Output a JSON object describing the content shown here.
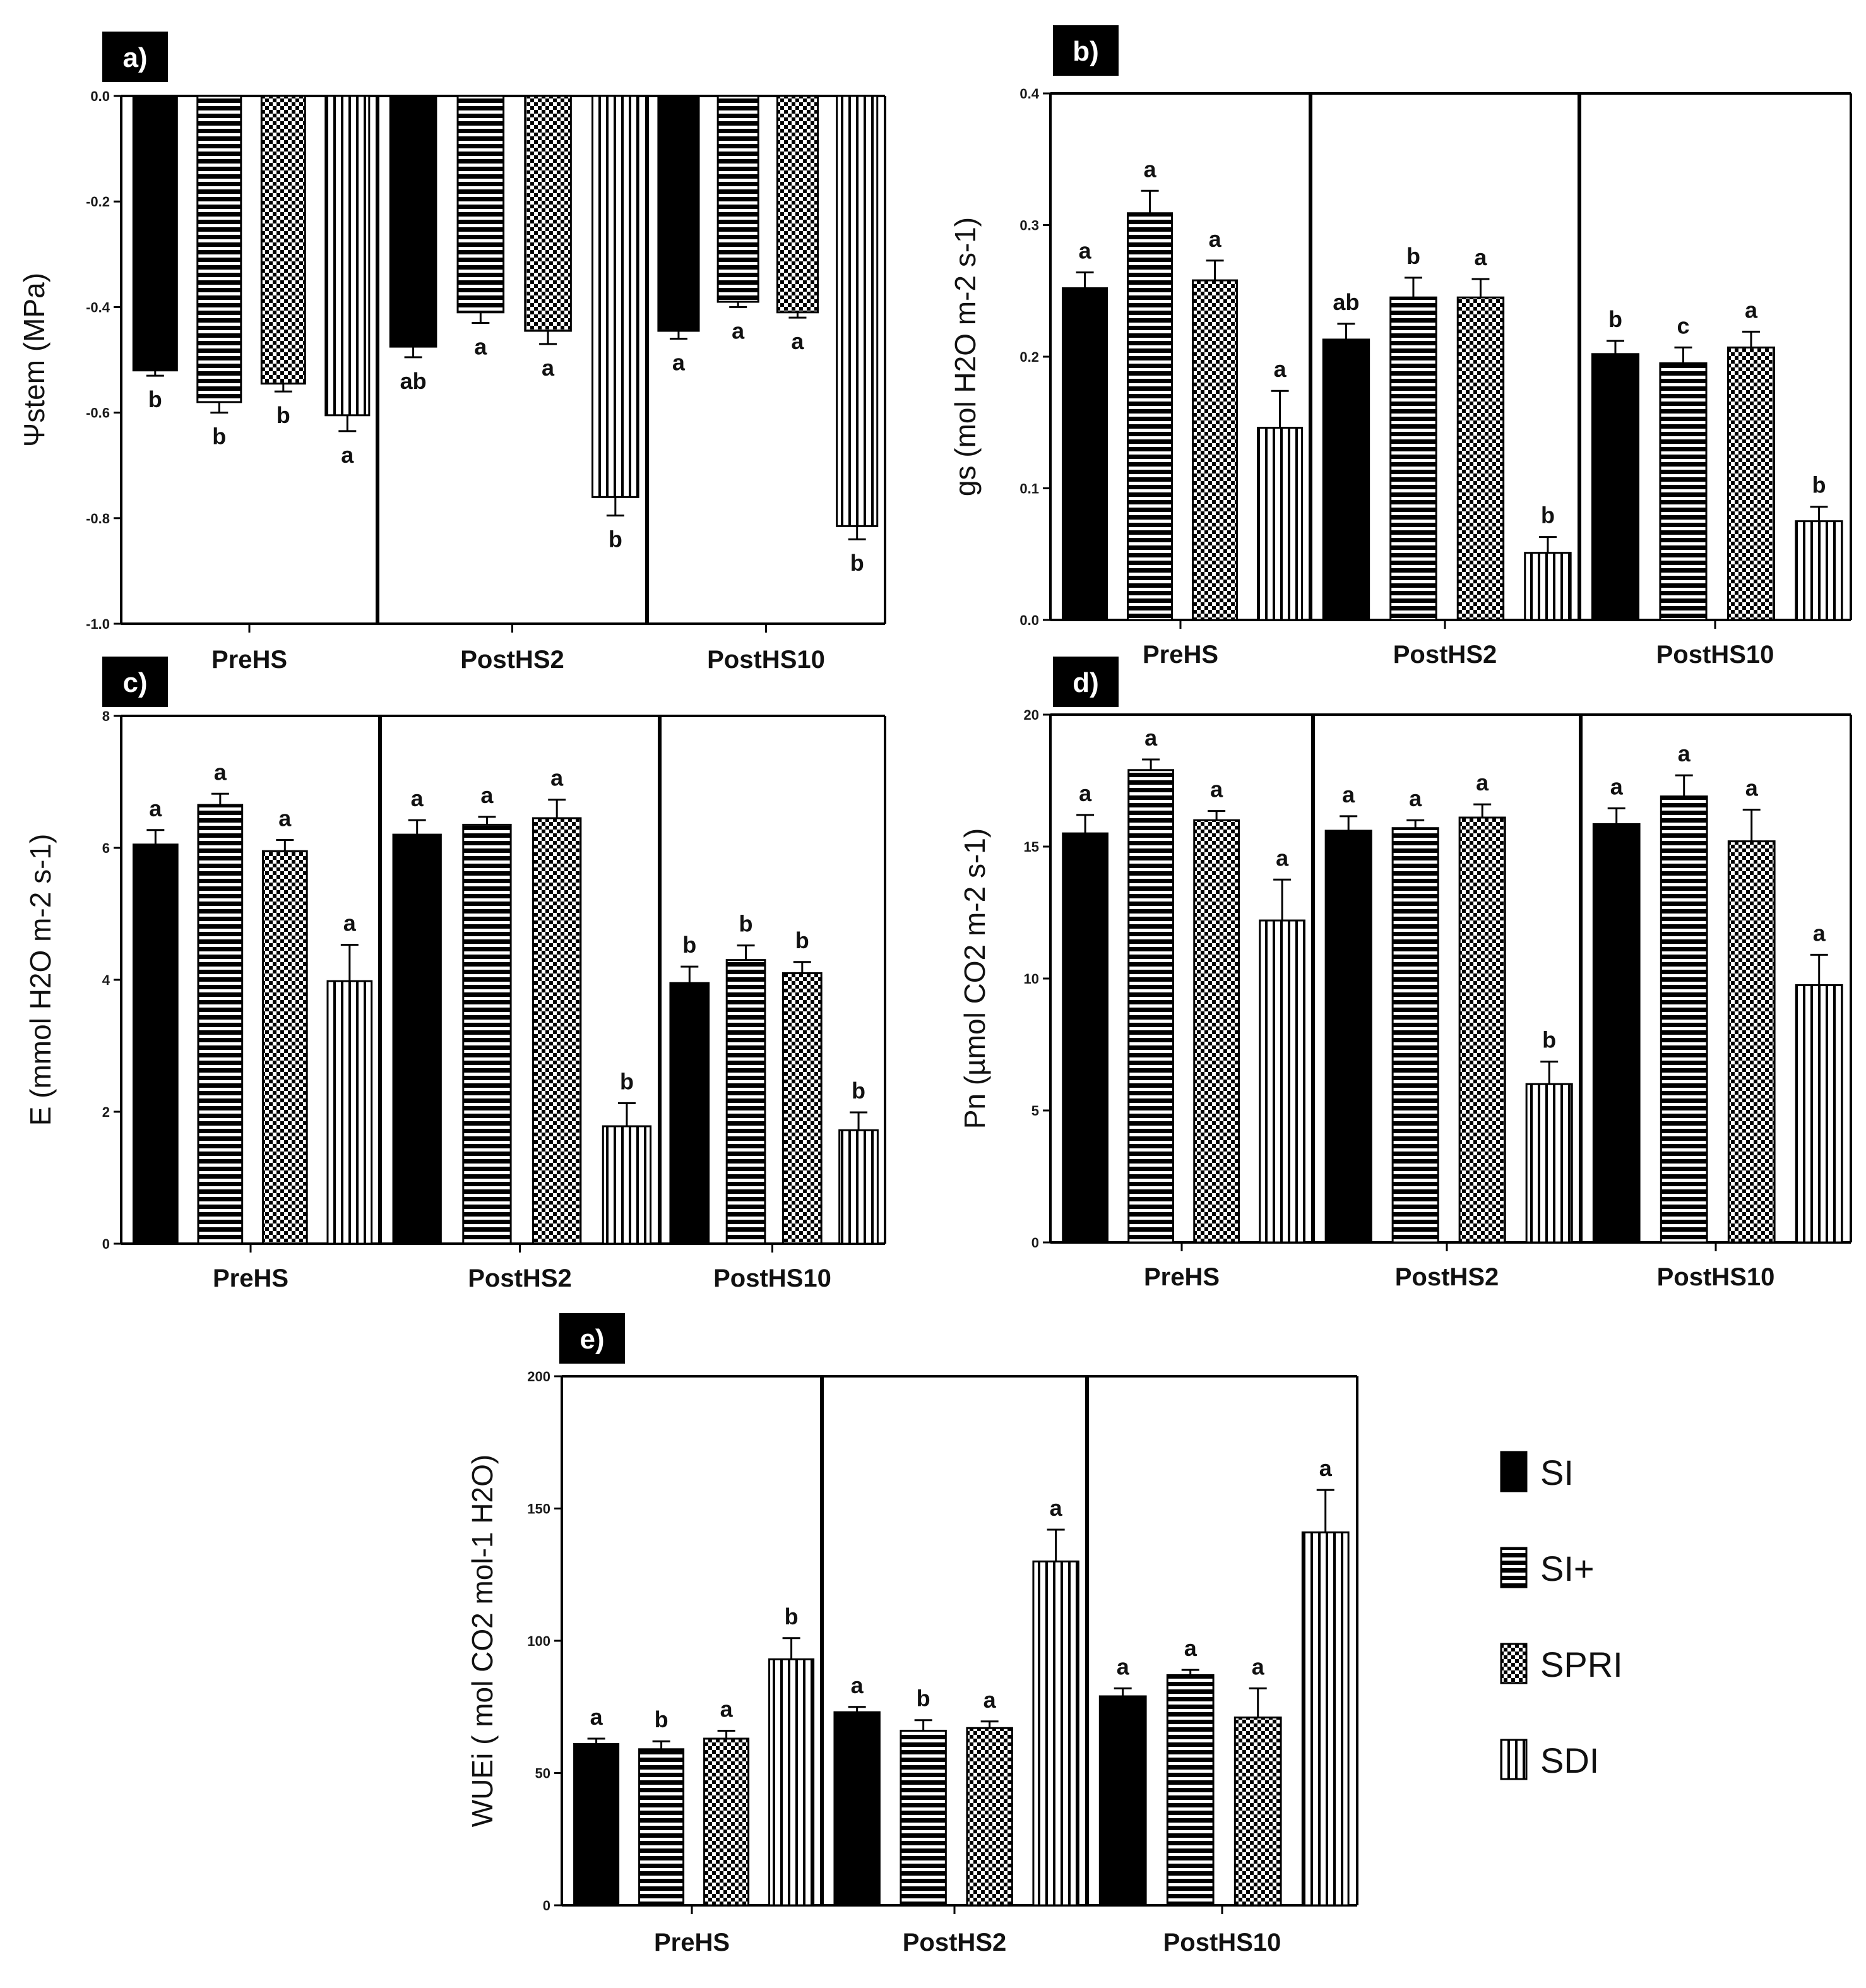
{
  "groups": [
    "PreHS",
    "PostHS2",
    "PostHS10"
  ],
  "treatments": [
    "SI",
    "SI+",
    "SPRI",
    "SDI"
  ],
  "legend": {
    "items": [
      {
        "label": "SI",
        "pattern": "solid"
      },
      {
        "label": "SI+",
        "pattern": "hlines"
      },
      {
        "label": "SPRI",
        "pattern": "checker"
      },
      {
        "label": "SDI",
        "pattern": "vlines"
      }
    ]
  },
  "chart_data": [
    {
      "type": "bar",
      "panel": "a)",
      "title": "",
      "ylabel": "Ψstem (MPa)",
      "ylim": [
        -1.0,
        0.0
      ],
      "yticks": [
        0.0,
        -0.2,
        -0.4,
        -0.6,
        -0.8,
        -1.0
      ],
      "tick_labels": [
        "0.0",
        "-0.2",
        "-0.4",
        "-0.6",
        "-0.8",
        "-1.0"
      ],
      "categories": [
        "PreHS",
        "PostHS2",
        "PostHS10"
      ],
      "series": [
        {
          "name": "SI",
          "values": [
            -0.52,
            -0.475,
            -0.445
          ],
          "errors": [
            0.01,
            0.02,
            0.015
          ],
          "letters": [
            "b",
            "ab",
            "a"
          ]
        },
        {
          "name": "SI+",
          "values": [
            -0.58,
            -0.41,
            -0.39
          ],
          "errors": [
            0.02,
            0.02,
            0.01
          ],
          "letters": [
            "b",
            "a",
            "a"
          ]
        },
        {
          "name": "SPRI",
          "values": [
            -0.545,
            -0.445,
            -0.41
          ],
          "errors": [
            0.015,
            0.025,
            0.01
          ],
          "letters": [
            "b",
            "a",
            "a"
          ]
        },
        {
          "name": "SDI",
          "values": [
            -0.605,
            -0.76,
            -0.815
          ],
          "errors": [
            0.03,
            0.035,
            0.025
          ],
          "letters": [
            "a",
            "b",
            "b"
          ]
        }
      ]
    },
    {
      "type": "bar",
      "panel": "b)",
      "title": "",
      "ylabel": "gs (mol H2O m-2 s-1)",
      "ylim": [
        0.0,
        0.4
      ],
      "yticks": [
        0.0,
        0.1,
        0.2,
        0.3,
        0.4
      ],
      "tick_labels": [
        "0.0",
        "0.1",
        "0.2",
        "0.3",
        "0.4"
      ],
      "categories": [
        "PreHS",
        "PostHS2",
        "PostHS10"
      ],
      "series": [
        {
          "name": "SI",
          "values": [
            0.252,
            0.213,
            0.202
          ],
          "errors": [
            0.012,
            0.012,
            0.01
          ],
          "letters": [
            "a",
            "ab",
            "b"
          ]
        },
        {
          "name": "SI+",
          "values": [
            0.309,
            0.245,
            0.195
          ],
          "errors": [
            0.017,
            0.015,
            0.012
          ],
          "letters": [
            "a",
            "b",
            "c"
          ]
        },
        {
          "name": "SPRI",
          "values": [
            0.258,
            0.245,
            0.207
          ],
          "errors": [
            0.015,
            0.014,
            0.012
          ],
          "letters": [
            "a",
            "a",
            "a"
          ]
        },
        {
          "name": "SDI",
          "values": [
            0.146,
            0.051,
            0.075
          ],
          "errors": [
            0.028,
            0.012,
            0.011
          ],
          "letters": [
            "a",
            "b",
            "b"
          ]
        }
      ]
    },
    {
      "type": "bar",
      "panel": "c)",
      "title": "",
      "ylabel": "E (mmol H2O m-2 s-1)",
      "ylim": [
        0,
        8
      ],
      "yticks": [
        0,
        2,
        4,
        6,
        8
      ],
      "tick_labels": [
        "0",
        "2",
        "4",
        "6",
        "8"
      ],
      "categories": [
        "PreHS",
        "PostHS2",
        "PostHS10"
      ],
      "series": [
        {
          "name": "SI",
          "values": [
            6.05,
            6.2,
            3.95
          ],
          "errors": [
            0.22,
            0.22,
            0.25
          ],
          "letters": [
            "a",
            "a",
            "b"
          ]
        },
        {
          "name": "SI+",
          "values": [
            6.65,
            6.35,
            4.3
          ],
          "errors": [
            0.17,
            0.12,
            0.22
          ],
          "letters": [
            "a",
            "a",
            "b"
          ]
        },
        {
          "name": "SPRI",
          "values": [
            5.95,
            6.45,
            4.1
          ],
          "errors": [
            0.17,
            0.28,
            0.17
          ],
          "letters": [
            "a",
            "a",
            "b"
          ]
        },
        {
          "name": "SDI",
          "values": [
            3.98,
            1.78,
            1.72
          ],
          "errors": [
            0.55,
            0.35,
            0.27
          ],
          "letters": [
            "a",
            "b",
            "b"
          ]
        }
      ]
    },
    {
      "type": "bar",
      "panel": "d)",
      "title": "",
      "ylabel": "Pn (µmol CO2 m-2 s-1)",
      "ylim": [
        0,
        20
      ],
      "yticks": [
        0,
        5,
        10,
        15,
        20
      ],
      "tick_labels": [
        "0",
        "5",
        "10",
        "15",
        "20"
      ],
      "categories": [
        "PreHS",
        "PostHS2",
        "PostHS10"
      ],
      "series": [
        {
          "name": "SI",
          "values": [
            15.5,
            15.6,
            15.85
          ],
          "errors": [
            0.7,
            0.55,
            0.6
          ],
          "letters": [
            "a",
            "a",
            "a"
          ]
        },
        {
          "name": "SI+",
          "values": [
            17.9,
            15.7,
            16.9
          ],
          "errors": [
            0.4,
            0.3,
            0.8
          ],
          "letters": [
            "a",
            "a",
            "a"
          ]
        },
        {
          "name": "SPRI",
          "values": [
            16.0,
            16.1,
            15.2
          ],
          "errors": [
            0.35,
            0.5,
            1.2
          ],
          "letters": [
            "a",
            "a",
            "a"
          ]
        },
        {
          "name": "SDI",
          "values": [
            12.2,
            6.0,
            9.75
          ],
          "errors": [
            1.55,
            0.85,
            1.15
          ],
          "letters": [
            "a",
            "b",
            "a"
          ]
        }
      ]
    },
    {
      "type": "bar",
      "panel": "e)",
      "title": "",
      "ylabel": "WUEi ( mol CO2 mol-1 H2O)",
      "ylim": [
        0,
        200
      ],
      "yticks": [
        0,
        50,
        100,
        150,
        200
      ],
      "tick_labels": [
        "0",
        "50",
        "100",
        "150",
        "200"
      ],
      "categories": [
        "PreHS",
        "PostHS2",
        "PostHS10"
      ],
      "series": [
        {
          "name": "SI",
          "values": [
            61,
            73,
            79
          ],
          "errors": [
            2,
            2,
            3
          ],
          "letters": [
            "a",
            "a",
            "a"
          ]
        },
        {
          "name": "SI+",
          "values": [
            59,
            66,
            87
          ],
          "errors": [
            3,
            4,
            2
          ],
          "letters": [
            "b",
            "b",
            "a"
          ]
        },
        {
          "name": "SPRI",
          "values": [
            63,
            67,
            71
          ],
          "errors": [
            3,
            2.5,
            11
          ],
          "letters": [
            "a",
            "a",
            "a"
          ]
        },
        {
          "name": "SDI",
          "values": [
            93,
            130,
            141
          ],
          "errors": [
            8,
            12,
            16
          ],
          "letters": [
            "b",
            "a",
            "a"
          ]
        }
      ]
    }
  ]
}
